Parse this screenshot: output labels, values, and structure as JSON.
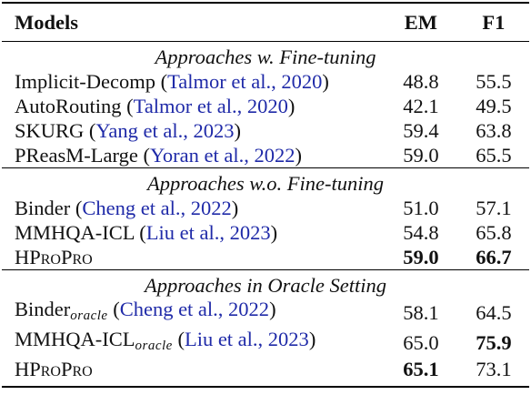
{
  "header": {
    "models": "Models",
    "em": "EM",
    "f1": "F1"
  },
  "sections": [
    {
      "title": "Approaches w. Fine-tuning",
      "rows": [
        {
          "model": "Implicit-Decomp",
          "cite": "Talmor et al., 2020",
          "em": "48.8",
          "f1": "55.5"
        },
        {
          "model": "AutoRouting",
          "cite": "Talmor et al., 2020",
          "em": "42.1",
          "f1": "49.5"
        },
        {
          "model": "SKURG",
          "cite": "Yang et al., 2023",
          "em": "59.4",
          "f1": "63.8"
        },
        {
          "model": "PReasM-Large",
          "cite": "Yoran et al., 2022",
          "em": "59.0",
          "f1": "65.5"
        }
      ]
    },
    {
      "title": "Approaches w.o. Fine-tuning",
      "rows": [
        {
          "model": "Binder",
          "cite": "Cheng et al., 2022",
          "em": "51.0",
          "f1": "57.1"
        },
        {
          "model": "MMHQA-ICL",
          "cite": "Liu et al., 2023",
          "em": "54.8",
          "f1": "65.8"
        },
        {
          "model": "HProPro",
          "cite": "",
          "em": "59.0",
          "f1": "66.7",
          "em_bold": true,
          "f1_bold": true
        }
      ]
    },
    {
      "title": "Approaches in Oracle Setting",
      "rows": [
        {
          "model": "Binder",
          "sub": "oracle",
          "cite": "Cheng et al., 2022",
          "em": "58.1",
          "f1": "64.5"
        },
        {
          "model": "MMHQA-ICL",
          "sub": "oracle",
          "cite": "Liu et al., 2023",
          "em": "65.0",
          "f1": "75.9",
          "f1_bold": true
        },
        {
          "model": "HProPro",
          "cite": "",
          "em": "65.1",
          "f1": "73.1",
          "em_bold": true
        }
      ]
    }
  ]
}
